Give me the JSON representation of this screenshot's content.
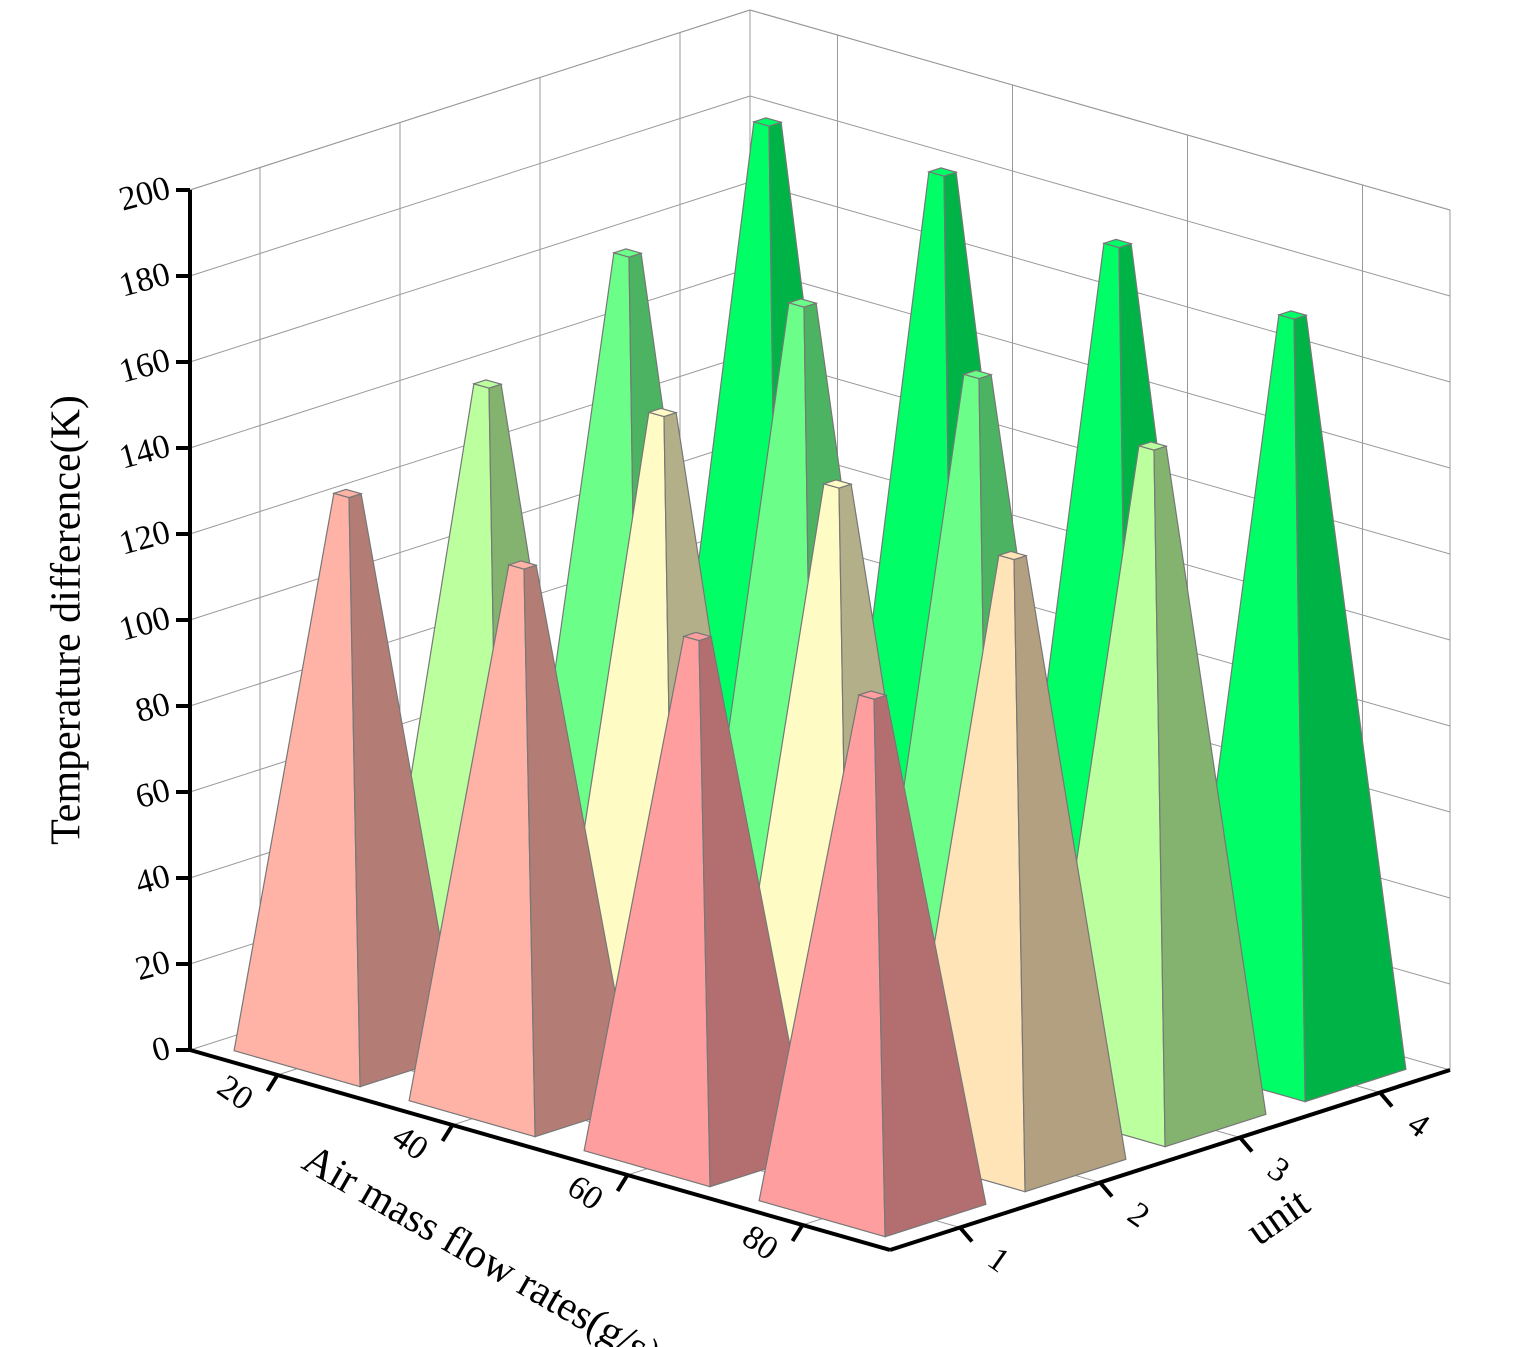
{
  "chart_data": {
    "type": "pyramid3d",
    "y_label": "Temperature difference(K)",
    "x_label": "Air mass flow rates(g/s)",
    "z_label": "unit",
    "x": [
      20,
      40,
      60,
      80
    ],
    "xlim": [
      10,
      90
    ],
    "xticks": [
      20,
      40,
      60,
      80
    ],
    "zlim": [
      0.5,
      4.5
    ],
    "zticks": [
      1,
      2,
      3,
      4
    ],
    "ylim": [
      0,
      200
    ],
    "yticks": [
      0,
      20,
      40,
      60,
      80,
      100,
      120,
      140,
      160,
      180,
      200
    ],
    "grid": true,
    "series": [
      {
        "name": "1",
        "values": [
          130,
          125,
          120,
          118
        ],
        "colors": [
          "#ffb3a7",
          "#ffb3a7",
          "#ff9e9e",
          "#ff9e9e"
        ]
      },
      {
        "name": "2",
        "values": [
          145,
          150,
          145,
          140
        ],
        "colors": [
          "#bbff9e",
          "#fffbc4",
          "#fffbc4",
          "#ffe4b8"
        ]
      },
      {
        "name": "3",
        "values": [
          165,
          165,
          160,
          155
        ],
        "colors": [
          "#6bff8a",
          "#6bff8a",
          "#6bff8a",
          "#bbff9e"
        ]
      },
      {
        "name": "4",
        "values": [
          185,
          185,
          180,
          175
        ],
        "colors": [
          "#00ff66",
          "#00ff66",
          "#00ff66",
          "#00ff66"
        ]
      }
    ]
  }
}
